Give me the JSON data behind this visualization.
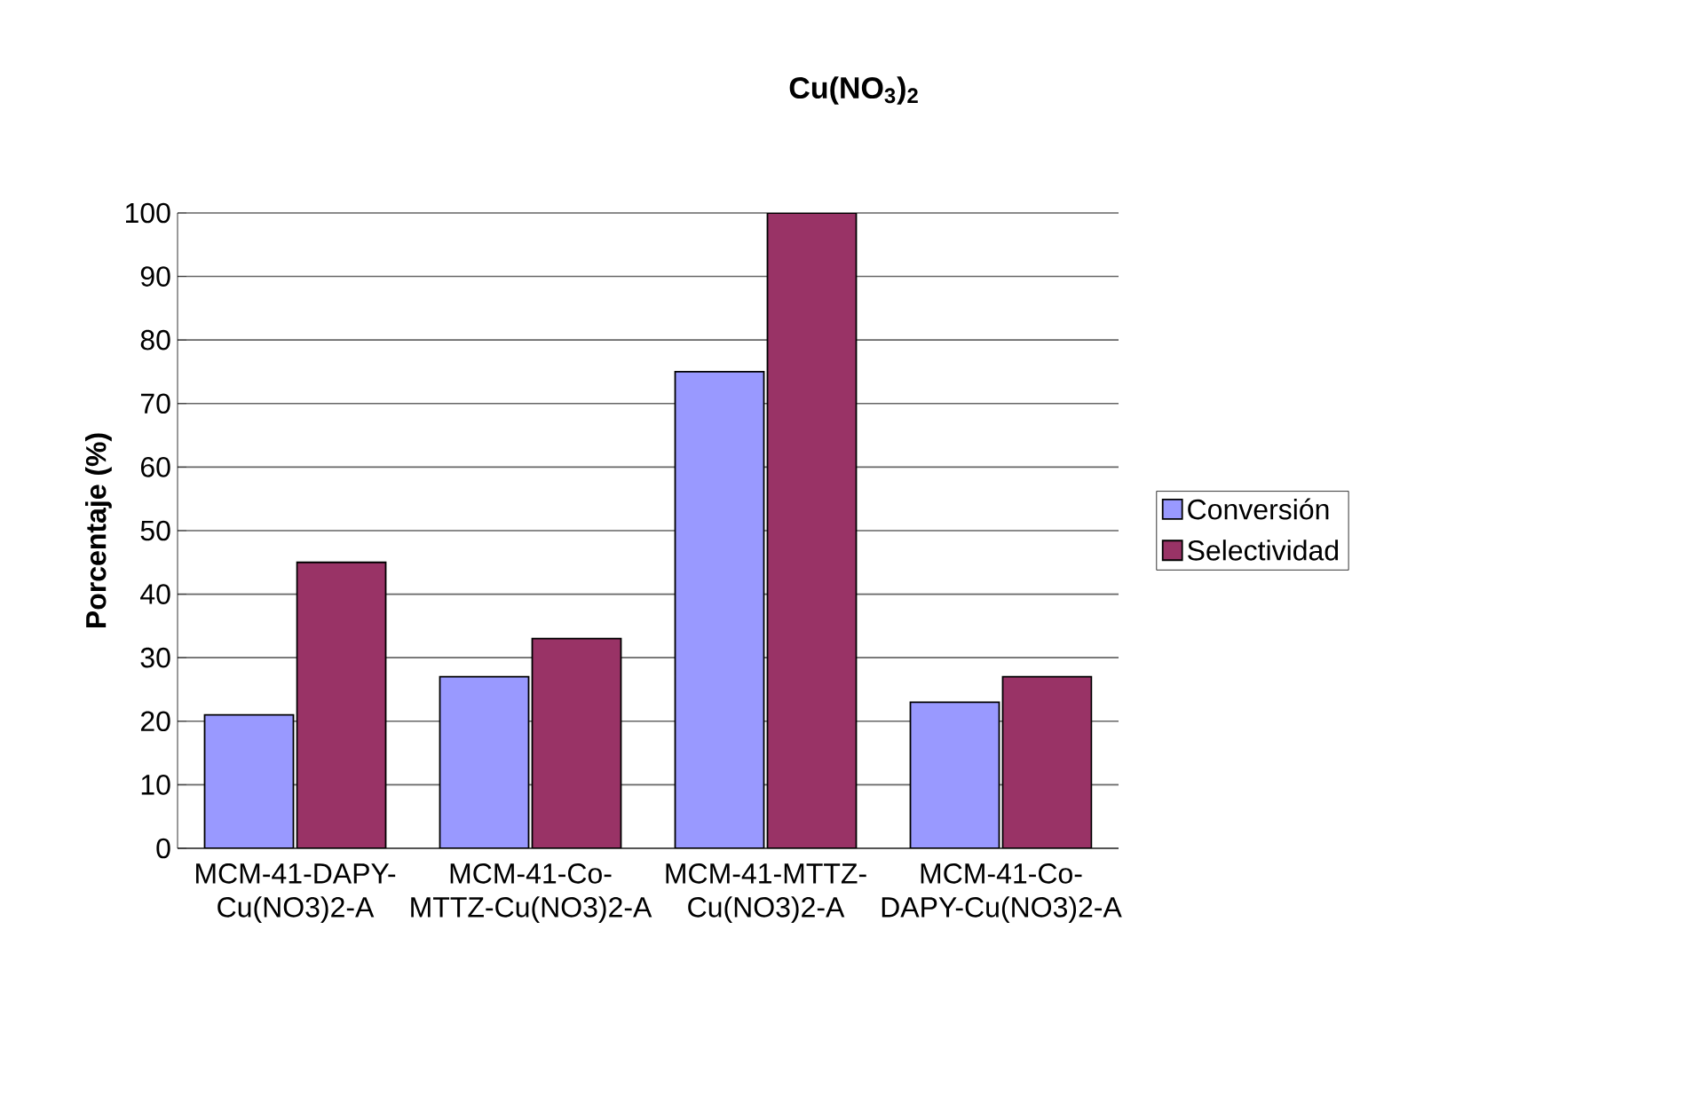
{
  "chart_data": {
    "type": "bar",
    "title": "Cu(NO$_{3}$)$_{2}$",
    "ylabel": "Porcentaje (%)",
    "categories": [
      "MCM-41-DAPY-Cu(NO3)2-A",
      "MCM-41-Co-MTTZ-Cu(NO3)2-A",
      "MCM-41-MTTZ-Cu(NO3)2-A",
      "MCM-41-Co-DAPY-Cu(NO3)2-A"
    ],
    "series": [
      {
        "name": "Conversión",
        "color": "#9999ff",
        "values": [
          21,
          27,
          75,
          23
        ]
      },
      {
        "name": "Selectividad",
        "color": "#993366",
        "values": [
          45,
          33,
          100,
          27
        ]
      }
    ],
    "ylim": [
      0,
      100
    ],
    "yticks": [
      0,
      10,
      20,
      30,
      40,
      50,
      60,
      70,
      80,
      90,
      100
    ],
    "grid": "y",
    "legend": "right"
  }
}
